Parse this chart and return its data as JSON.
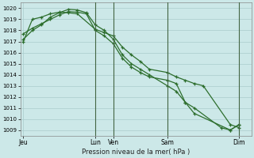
{
  "background_color": "#cce8e8",
  "grid_color": "#aacccc",
  "line_color": "#2d6e2d",
  "marker_color": "#2d6e2d",
  "xlabel": "Pression niveau de la mer( hPa )",
  "ylim": [
    1008.5,
    1020.5
  ],
  "yticks": [
    1009,
    1010,
    1011,
    1012,
    1013,
    1014,
    1015,
    1016,
    1017,
    1018,
    1019,
    1020
  ],
  "day_labels": [
    "Jeu",
    "Lun",
    "Ven",
    "Sam",
    "Dim"
  ],
  "day_x": [
    0,
    96,
    120,
    192,
    288
  ],
  "vline_x": [
    96,
    120,
    192,
    288
  ],
  "xlim": [
    -4,
    304
  ],
  "series1_x": [
    0,
    12,
    24,
    36,
    48,
    60,
    72,
    96,
    108,
    120,
    132,
    144,
    156,
    168,
    192,
    204,
    216,
    228,
    240,
    276,
    288
  ],
  "series1_y": [
    1017.0,
    1019.0,
    1019.2,
    1019.5,
    1019.65,
    1019.6,
    1019.5,
    1018.1,
    1017.8,
    1017.5,
    1016.5,
    1015.8,
    1015.2,
    1014.5,
    1014.2,
    1013.8,
    1013.5,
    1013.2,
    1013.0,
    1009.5,
    1009.2
  ],
  "series2_x": [
    0,
    12,
    24,
    36,
    48,
    60,
    72,
    84,
    96,
    108,
    120,
    132,
    144,
    156,
    168,
    192,
    204,
    216,
    228,
    276,
    288
  ],
  "series2_y": [
    1017.7,
    1018.2,
    1018.6,
    1019.0,
    1019.4,
    1019.7,
    1019.65,
    1019.5,
    1018.0,
    1017.5,
    1016.8,
    1015.5,
    1014.7,
    1014.2,
    1013.8,
    1013.5,
    1013.2,
    1011.5,
    1010.5,
    1009.0,
    1009.5
  ],
  "series3_x": [
    0,
    12,
    24,
    36,
    48,
    60,
    72,
    84,
    96,
    108,
    120,
    132,
    144,
    156,
    168,
    192,
    204,
    216,
    228,
    264,
    276,
    288
  ],
  "series3_y": [
    1017.2,
    1018.0,
    1018.5,
    1019.2,
    1019.6,
    1019.9,
    1019.85,
    1019.6,
    1018.5,
    1018.0,
    1017.2,
    1015.8,
    1015.0,
    1014.5,
    1014.0,
    1013.0,
    1012.5,
    1011.5,
    1011.0,
    1009.2,
    1009.0,
    1009.5
  ]
}
